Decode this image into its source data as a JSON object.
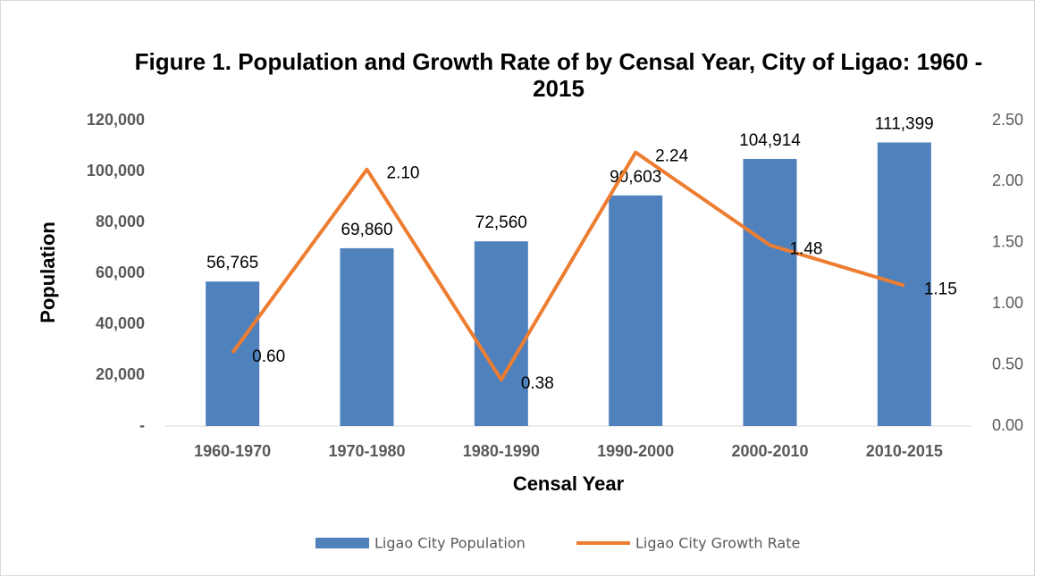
{
  "chart_data": {
    "type": "bar-line",
    "title": "Figure 1. Population and Growth Rate of by Censal Year, City of Ligao: 1960 - 2015",
    "ylabel": "Population",
    "xlabel": "Censal Year",
    "categories": [
      "1960-1970",
      "1970-1980",
      "1980-1990",
      "1990-2000",
      "2000-2010",
      "2010-2015"
    ],
    "series": [
      {
        "name": "Ligao City Population",
        "type": "bar",
        "color": "#4f81bd",
        "values": [
          56765,
          69860,
          72560,
          90603,
          104914,
          111399
        ],
        "value_labels": [
          "56,765",
          "69,860",
          "72,560",
          "90,603",
          "104,914",
          "111,399"
        ]
      },
      {
        "name": "Ligao City Growth Rate",
        "type": "line",
        "axis": "y2",
        "color": "#ed7d31",
        "values": [
          0.6,
          2.1,
          0.38,
          2.24,
          1.48,
          1.15
        ],
        "value_labels": [
          "0.60",
          "2.10",
          "0.38",
          "2.24",
          "1.48",
          "1.15"
        ]
      }
    ],
    "ylim": [
      0,
      120000
    ],
    "yticks": [
      {
        "value": 0,
        "label": "-"
      },
      {
        "value": 20000,
        "label": "20,000"
      },
      {
        "value": 40000,
        "label": "40,000"
      },
      {
        "value": 60000,
        "label": "60,000"
      },
      {
        "value": 80000,
        "label": "80,000"
      },
      {
        "value": 100000,
        "label": "100,000"
      },
      {
        "value": 120000,
        "label": "120,000"
      }
    ],
    "y2lim": [
      0,
      2.5
    ],
    "y2ticks": [
      {
        "value": 0,
        "label": "0.00"
      },
      {
        "value": 0.5,
        "label": "0.50"
      },
      {
        "value": 1,
        "label": "1.00"
      },
      {
        "value": 1.5,
        "label": "1.50"
      },
      {
        "value": 2,
        "label": "2.00"
      },
      {
        "value": 2.5,
        "label": "2.50"
      }
    ],
    "legend": "bottom"
  }
}
